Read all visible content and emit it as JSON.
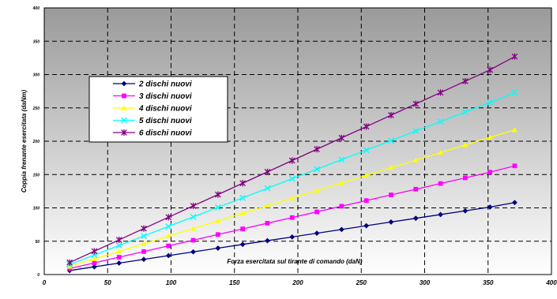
{
  "chart_data": {
    "type": "line",
    "title": "",
    "xlabel": "Forza esercitata sul tirante di comando (daN)",
    "ylabel": "Coppia frenante esercitata (daNm)",
    "xlim": [
      0,
      400
    ],
    "ylim": [
      0,
      400
    ],
    "x_ticks": [
      0,
      50,
      100,
      150,
      200,
      250,
      300,
      350,
      400
    ],
    "y_ticks": [
      0,
      50,
      100,
      150,
      200,
      250,
      300,
      350,
      400
    ],
    "x_tick_labels": [
      "0",
      "50",
      "100",
      "150",
      "200",
      "250",
      "300",
      "350",
      "400"
    ],
    "y_tick_labels": [
      "0",
      "50",
      "100",
      "150",
      "200",
      "250",
      "300",
      "350",
      "400"
    ],
    "grid": true,
    "legend_position": "upper-left",
    "x": [
      20,
      39.5,
      59,
      78.5,
      98,
      117.5,
      137,
      156.5,
      176,
      195.5,
      215,
      234.5,
      254,
      273.5,
      293,
      312.5,
      332,
      351.5,
      371
    ],
    "series": [
      {
        "name": "2 dischi nuovi",
        "color": "#000080",
        "marker": "diamond",
        "values": [
          6,
          11.6,
          17.2,
          22.8,
          28.4,
          34,
          39.6,
          45.2,
          50.8,
          56.4,
          62,
          67.6,
          73.2,
          78.8,
          84.4,
          90,
          95.6,
          101.2,
          108
        ]
      },
      {
        "name": "3 dischi nuovi",
        "color": "#ff00ff",
        "marker": "square",
        "values": [
          9,
          17.5,
          26,
          34.5,
          43,
          51.5,
          60,
          68.5,
          77,
          85.5,
          94,
          102.5,
          111,
          119.5,
          128,
          136.5,
          145,
          153.5,
          163
        ]
      },
      {
        "name": "4 dischi nuovi",
        "color": "#ffff00",
        "marker": "triangle",
        "values": [
          12,
          23.4,
          34.8,
          46.2,
          57.6,
          69,
          80.4,
          91.8,
          103.2,
          114.6,
          126,
          137.4,
          148.8,
          160.2,
          171.6,
          183,
          194.4,
          205.8,
          217
        ]
      },
      {
        "name": "5 dischi nuovi",
        "color": "#00ffff",
        "marker": "x",
        "values": [
          15,
          29.3,
          43.6,
          57.9,
          72.2,
          86.5,
          100.8,
          115.1,
          129.4,
          143.7,
          158,
          172.3,
          186.6,
          200.9,
          215.2,
          229.5,
          243.8,
          258.1,
          273
        ]
      },
      {
        "name": "6 dischi nuovi",
        "color": "#800080",
        "marker": "star",
        "values": [
          18,
          35,
          52,
          69,
          86,
          103,
          120,
          137,
          154,
          171,
          188,
          205,
          222,
          239,
          256,
          273,
          290,
          307,
          327
        ]
      }
    ]
  }
}
